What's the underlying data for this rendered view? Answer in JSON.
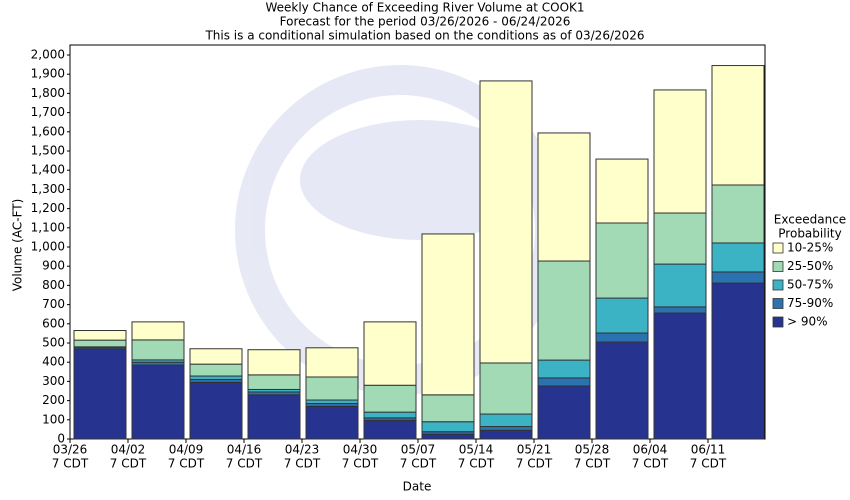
{
  "chart_data": {
    "type": "stacked_bar",
    "title": "Weekly Chance of Exceeding River Volume at COOK1",
    "subtitle": "Forecast for the period 03/26/2026 - 06/24/2026",
    "note": "This is a conditional simulation based on the conditions as of 03/26/2026",
    "x_label": "Date",
    "y_label": "Volume (AC-FT)",
    "legend_title": [
      "Exceedance",
      "Probability"
    ],
    "legend_position": "right",
    "categories": [
      [
        "03/26",
        "7 CDT"
      ],
      [
        "04/02",
        "7 CDT"
      ],
      [
        "04/09",
        "7 CDT"
      ],
      [
        "04/16",
        "7 CDT"
      ],
      [
        "04/23",
        "7 CDT"
      ],
      [
        "04/30",
        "7 CDT"
      ],
      [
        "05/07",
        "7 CDT"
      ],
      [
        "05/14",
        "7 CDT"
      ],
      [
        "05/21",
        "7 CDT"
      ],
      [
        "05/28",
        "7 CDT"
      ],
      [
        "06/04",
        "7 CDT"
      ],
      [
        "06/11",
        "7 CDT"
      ]
    ],
    "series": [
      {
        "name": "> 90%",
        "color": "#26348f",
        "values": [
          470,
          385,
          295,
          230,
          170,
          97,
          25,
          45,
          276,
          505,
          656,
          812
        ]
      },
      {
        "name": "75-90%",
        "color": "#2b72b0",
        "values": [
          8,
          15,
          15,
          15,
          15,
          13,
          13,
          20,
          42,
          47,
          32,
          58
        ]
      },
      {
        "name": "50-75%",
        "color": "#3cb3c5",
        "values": [
          2,
          12,
          18,
          13,
          18,
          30,
          52,
          65,
          93,
          182,
          223,
          151
        ]
      },
      {
        "name": "25-50%",
        "color": "#a1dab4",
        "values": [
          35,
          104,
          62,
          76,
          120,
          140,
          140,
          266,
          516,
          391,
          266,
          302
        ]
      },
      {
        "name": "10-25%",
        "color": "#ffffcc",
        "values": [
          50,
          94,
          80,
          131,
          152,
          330,
          838,
          1469,
          667,
          333,
          641,
          622
        ]
      }
    ],
    "ylim": [
      0,
      2000
    ],
    "yticks": [
      0,
      100,
      200,
      300,
      400,
      500,
      600,
      700,
      800,
      900,
      {
        "value": 1000,
        "label": "1,000"
      },
      {
        "value": 1100,
        "label": "1,100"
      },
      {
        "value": 1200,
        "label": "1,200"
      },
      {
        "value": 1300,
        "label": "1,300"
      },
      {
        "value": 1400,
        "label": "1,400"
      },
      {
        "value": 1500,
        "label": "1,500"
      },
      {
        "value": 1600,
        "label": "1,600"
      },
      {
        "value": 1700,
        "label": "1,700"
      },
      {
        "value": 1800,
        "label": "1,800"
      },
      {
        "value": 1900,
        "label": "1,900"
      },
      {
        "value": 2000,
        "label": "2,000"
      }
    ]
  }
}
